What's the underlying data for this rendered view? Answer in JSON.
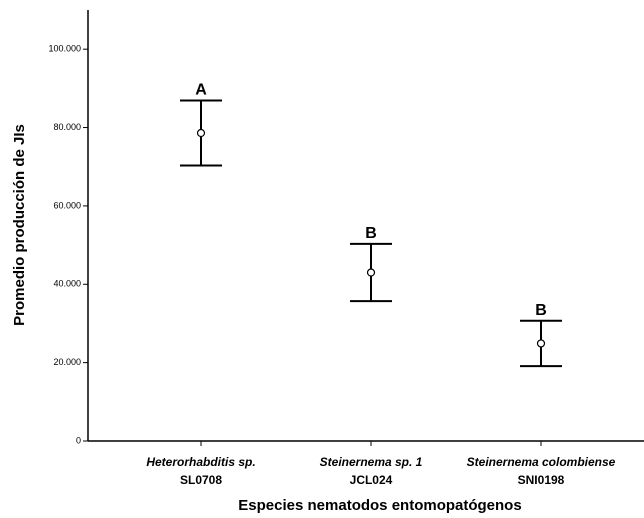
{
  "chart_data": {
    "type": "errorbar",
    "y_label": "Promedio producción de JIs",
    "x_label": "Especies nematodos entomopatógenos",
    "categories": [
      [
        "Heterorhabditis sp.",
        "SL0708"
      ],
      [
        "Steinernema sp. 1",
        "JCL024"
      ],
      [
        "Steinernema colombiense",
        "SNI0198"
      ]
    ],
    "values": [
      78600,
      43000,
      24900
    ],
    "errors": [
      8300,
      7300,
      5800
    ],
    "annotations": [
      "A",
      "B",
      "B"
    ],
    "color": "#000000",
    "ylim": [
      0,
      110000
    ],
    "yticks": [
      0,
      {
        "value": 20000,
        "label": "20.000"
      },
      {
        "value": 40000,
        "label": "40.000"
      },
      {
        "value": 60000,
        "label": "60.000"
      },
      {
        "value": 80000,
        "label": "80.000"
      },
      {
        "value": 100000,
        "label": "100.000"
      }
    ]
  }
}
